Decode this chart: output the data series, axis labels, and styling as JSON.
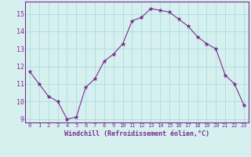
{
  "x": [
    0,
    1,
    2,
    3,
    4,
    5,
    6,
    7,
    8,
    9,
    10,
    11,
    12,
    13,
    14,
    15,
    16,
    17,
    18,
    19,
    20,
    21,
    22,
    23
  ],
  "y": [
    11.7,
    11.0,
    10.3,
    10.0,
    9.0,
    9.1,
    10.8,
    11.3,
    12.3,
    12.7,
    13.3,
    14.6,
    14.8,
    15.3,
    15.2,
    15.1,
    14.7,
    14.3,
    13.7,
    13.3,
    13.0,
    11.5,
    11.0,
    9.8
  ],
  "line_color": "#7B2D8B",
  "marker": "*",
  "marker_color": "#7B2D8B",
  "marker_size": 3.5,
  "bg_color": "#D6F0F0",
  "grid_color": "#AADDDD",
  "xlabel": "Windchill (Refroidissement éolien,°C)",
  "xlabel_color": "#7B2D8B",
  "tick_color": "#7B2D8B",
  "ylim_min": 8.8,
  "ylim_max": 15.7,
  "yticks": [
    9,
    10,
    11,
    12,
    13,
    14,
    15
  ],
  "xlim_min": -0.5,
  "xlim_max": 23.5,
  "xticks": [
    0,
    1,
    2,
    3,
    4,
    5,
    6,
    7,
    8,
    9,
    10,
    11,
    12,
    13,
    14,
    15,
    16,
    17,
    18,
    19,
    20,
    21,
    22,
    23
  ]
}
